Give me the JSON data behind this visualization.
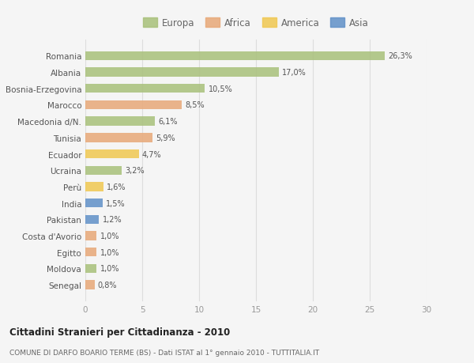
{
  "countries": [
    "Romania",
    "Albania",
    "Bosnia-Erzegovina",
    "Marocco",
    "Macedonia d/N.",
    "Tunisia",
    "Ecuador",
    "Ucraina",
    "Perù",
    "India",
    "Pakistan",
    "Costa d'Avorio",
    "Egitto",
    "Moldova",
    "Senegal"
  ],
  "values": [
    26.3,
    17.0,
    10.5,
    8.5,
    6.1,
    5.9,
    4.7,
    3.2,
    1.6,
    1.5,
    1.2,
    1.0,
    1.0,
    1.0,
    0.8
  ],
  "labels": [
    "26,3%",
    "17,0%",
    "10,5%",
    "8,5%",
    "6,1%",
    "5,9%",
    "4,7%",
    "3,2%",
    "1,6%",
    "1,5%",
    "1,2%",
    "1,0%",
    "1,0%",
    "1,0%",
    "0,8%"
  ],
  "categories": [
    "Europa",
    "Africa",
    "America",
    "Asia"
  ],
  "continent": [
    "Europa",
    "Europa",
    "Europa",
    "Africa",
    "Europa",
    "Africa",
    "America",
    "Europa",
    "America",
    "Asia",
    "Asia",
    "Africa",
    "Africa",
    "Europa",
    "Africa"
  ],
  "colors": {
    "Europa": "#a8c07a",
    "Africa": "#e8a878",
    "America": "#f0c850",
    "Asia": "#6090c8"
  },
  "xlim": [
    0,
    30
  ],
  "xticks": [
    0,
    5,
    10,
    15,
    20,
    25,
    30
  ],
  "title": "Cittadini Stranieri per Cittadinanza - 2010",
  "subtitle": "COMUNE DI DARFO BOARIO TERME (BS) - Dati ISTAT al 1° gennaio 2010 - TUTTITALIA.IT",
  "background_color": "#f5f5f5",
  "bar_height": 0.55
}
